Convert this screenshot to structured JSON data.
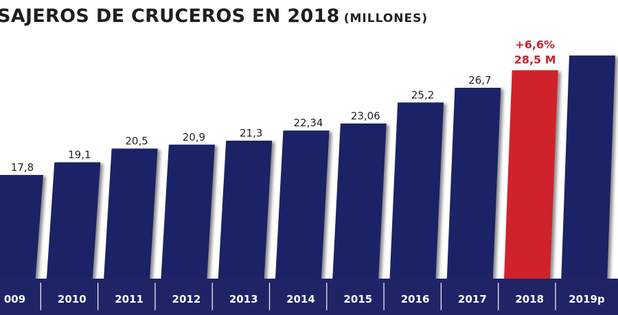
{
  "chart_data": {
    "type": "bar",
    "title": "SAJEROS DE CRUCEROS EN 2018",
    "subtitle": "(MILLONES)",
    "categories": [
      "009",
      "2010",
      "2011",
      "2012",
      "2013",
      "2014",
      "2015",
      "2016",
      "2017",
      "2018",
      "2019p"
    ],
    "values": [
      17.8,
      19.1,
      20.5,
      20.9,
      21.3,
      22.34,
      23.06,
      25.2,
      26.7,
      28.5,
      30.0
    ],
    "data_labels": [
      "17,8",
      "19,1",
      "20,5",
      "20,9",
      "21,3",
      "22,34",
      "23,06",
      "25,2",
      "26,7",
      "",
      ""
    ],
    "highlight": {
      "category": "2018",
      "growth_label": "+6,6%",
      "value_label": "28,5 M"
    },
    "colors": {
      "bar": "#1f2466",
      "highlight": "#d0202a",
      "axis_band": "#1f2466",
      "axis_text": "#ffffff"
    },
    "ylim": [
      0,
      31
    ]
  }
}
